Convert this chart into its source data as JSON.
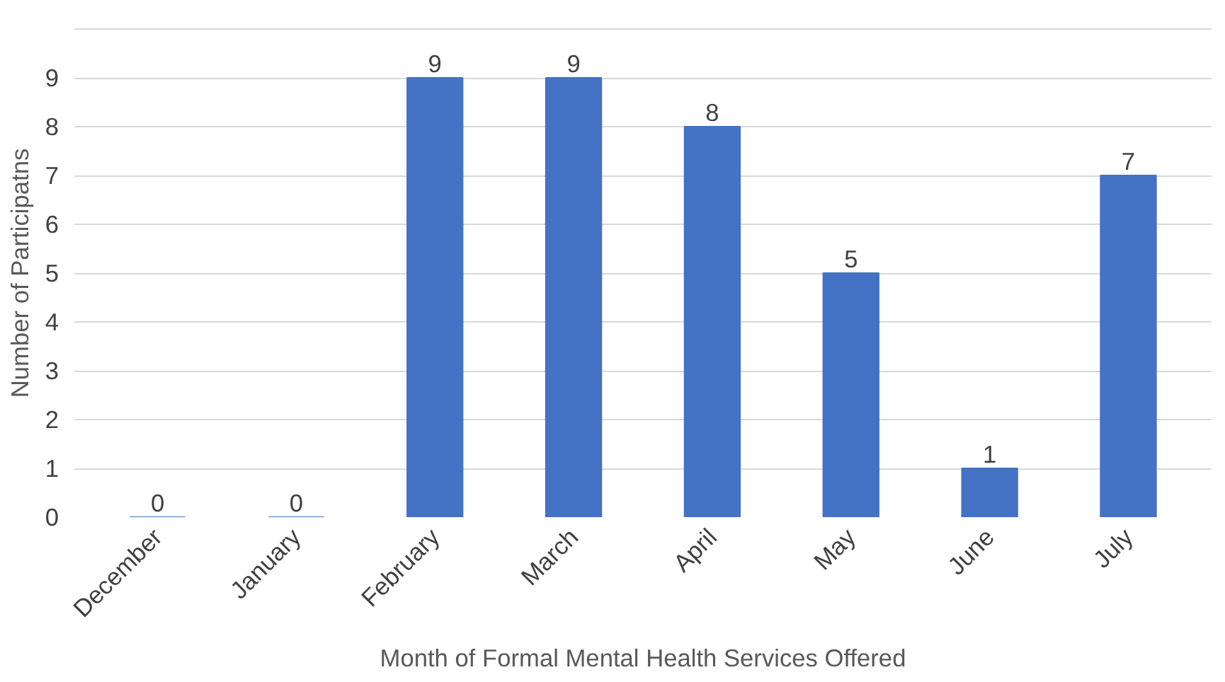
{
  "chart_data": {
    "type": "bar",
    "xlabel": "Month of Formal Mental Health Services Offered",
    "ylabel": "Number of Participatns",
    "categories": [
      "December",
      "January",
      "February",
      "March",
      "April",
      "May",
      "June",
      "July"
    ],
    "values": [
      0,
      0,
      9,
      9,
      8,
      5,
      1,
      7
    ],
    "color": "#4472c4",
    "ylim": [
      0,
      10
    ],
    "yticks": [
      0,
      1,
      2,
      3,
      4,
      5,
      6,
      7,
      8,
      9,
      {
        "value": 10,
        "label": null
      }
    ],
    "grid": "y",
    "data_labels": true
  }
}
